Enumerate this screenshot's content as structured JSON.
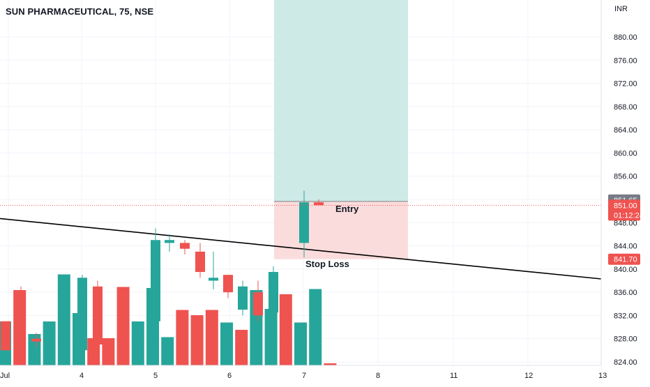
{
  "header": {
    "symbol": "SUN PHARMACEUTICAL, 75, NSE",
    "currency": "INR"
  },
  "colors": {
    "up": "#26a69a",
    "down": "#ef5350",
    "target_zone": "#cdeae6",
    "stop_zone": "#fbdcdc",
    "trendline": "#000000",
    "grid": "#f0f3fa",
    "axis_text": "#131722"
  },
  "price_scale": {
    "ticks": [
      "880.00",
      "876.00",
      "872.00",
      "868.00",
      "864.00",
      "860.00",
      "856.00",
      "848.00",
      "844.00",
      "840.00",
      "836.00",
      "832.00",
      "828.00",
      "824.00"
    ]
  },
  "price_badges": {
    "upper": "851.65",
    "last_price": "851.00",
    "countdown": "01:12:24",
    "stop": "841.70"
  },
  "time_scale": {
    "labels": [
      "Jul",
      "4",
      "5",
      "6",
      "7",
      "8",
      "11",
      "12",
      "13"
    ]
  },
  "annotations": {
    "entry_label": "Entry",
    "stop_label": "Stop Loss"
  },
  "chart_data": {
    "type": "candlestick",
    "ylim": [
      822.5,
      883
    ],
    "position": {
      "entry": 851.65,
      "stop": 841.7,
      "target": 883
    },
    "trendline": {
      "start_price": 848.7,
      "end_price": 838.3
    },
    "candles": [
      {
        "day": "Jul",
        "o": 831,
        "h": 831,
        "l": 826,
        "c": 826,
        "dir": "down"
      },
      {
        "day": "Jul",
        "o": 836,
        "h": 837,
        "l": 828,
        "c": 829,
        "dir": "down"
      },
      {
        "day": "Jul",
        "o": 828,
        "h": 829,
        "l": 826.5,
        "c": 827.5,
        "dir": "down"
      },
      {
        "day": "4",
        "o": 826,
        "h": 839,
        "l": 825,
        "c": 838.5,
        "dir": "up"
      },
      {
        "day": "4",
        "o": 837,
        "h": 838,
        "l": 826,
        "c": 827,
        "dir": "down"
      },
      {
        "day": "5",
        "o": 831,
        "h": 847,
        "l": 830,
        "c": 845,
        "dir": "up"
      },
      {
        "day": "5",
        "o": 845,
        "h": 846,
        "l": 843,
        "c": 844.5,
        "dir": "up"
      },
      {
        "day": "5",
        "o": 844.5,
        "h": 845,
        "l": 842.5,
        "c": 843.5,
        "dir": "down"
      },
      {
        "day": "6",
        "o": 843,
        "h": 844.5,
        "l": 838.5,
        "c": 839.5,
        "dir": "down"
      },
      {
        "day": "6",
        "o": 838,
        "h": 843,
        "l": 836.5,
        "c": 838.5,
        "dir": "up"
      },
      {
        "day": "6",
        "o": 839,
        "h": 839,
        "l": 835,
        "c": 836,
        "dir": "down"
      },
      {
        "day": "6",
        "o": 833,
        "h": 838,
        "l": 832,
        "c": 837,
        "dir": "up"
      },
      {
        "day": "7",
        "o": 836,
        "h": 838,
        "l": 831,
        "c": 832,
        "dir": "down"
      },
      {
        "day": "7",
        "o": 832.5,
        "h": 840.5,
        "l": 829,
        "c": 839.5,
        "dir": "up"
      },
      {
        "day": "7",
        "o": 844.5,
        "h": 853.5,
        "l": 842,
        "c": 851.5,
        "dir": "up"
      },
      {
        "day": "7",
        "o": 851.5,
        "h": 852,
        "l": 851,
        "c": 851,
        "dir": "down"
      }
    ],
    "volume_bars": [
      {
        "dir": "up",
        "rel": 0.42
      },
      {
        "dir": "down",
        "rel": 0.72
      },
      {
        "dir": "up",
        "rel": 0.3
      },
      {
        "dir": "up",
        "rel": 0.42
      },
      {
        "dir": "up",
        "rel": 0.87
      },
      {
        "dir": "up",
        "rel": 0.5
      },
      {
        "dir": "down",
        "rel": 0.26
      },
      {
        "dir": "down",
        "rel": 0.26
      },
      {
        "dir": "down",
        "rel": 0.75
      },
      {
        "dir": "up",
        "rel": 0.42
      },
      {
        "dir": "up",
        "rel": 0.74
      },
      {
        "dir": "up",
        "rel": 0.27
      },
      {
        "dir": "down",
        "rel": 0.53
      },
      {
        "dir": "down",
        "rel": 0.48
      },
      {
        "dir": "down",
        "rel": 0.53
      },
      {
        "dir": "up",
        "rel": 0.41
      },
      {
        "dir": "down",
        "rel": 0.34
      },
      {
        "dir": "up",
        "rel": 0.72
      },
      {
        "dir": "up",
        "rel": 0.54
      },
      {
        "dir": "down",
        "rel": 0.68
      },
      {
        "dir": "up",
        "rel": 0.41
      },
      {
        "dir": "up",
        "rel": 0.73
      },
      {
        "dir": "down",
        "rel": 0.02
      }
    ]
  }
}
